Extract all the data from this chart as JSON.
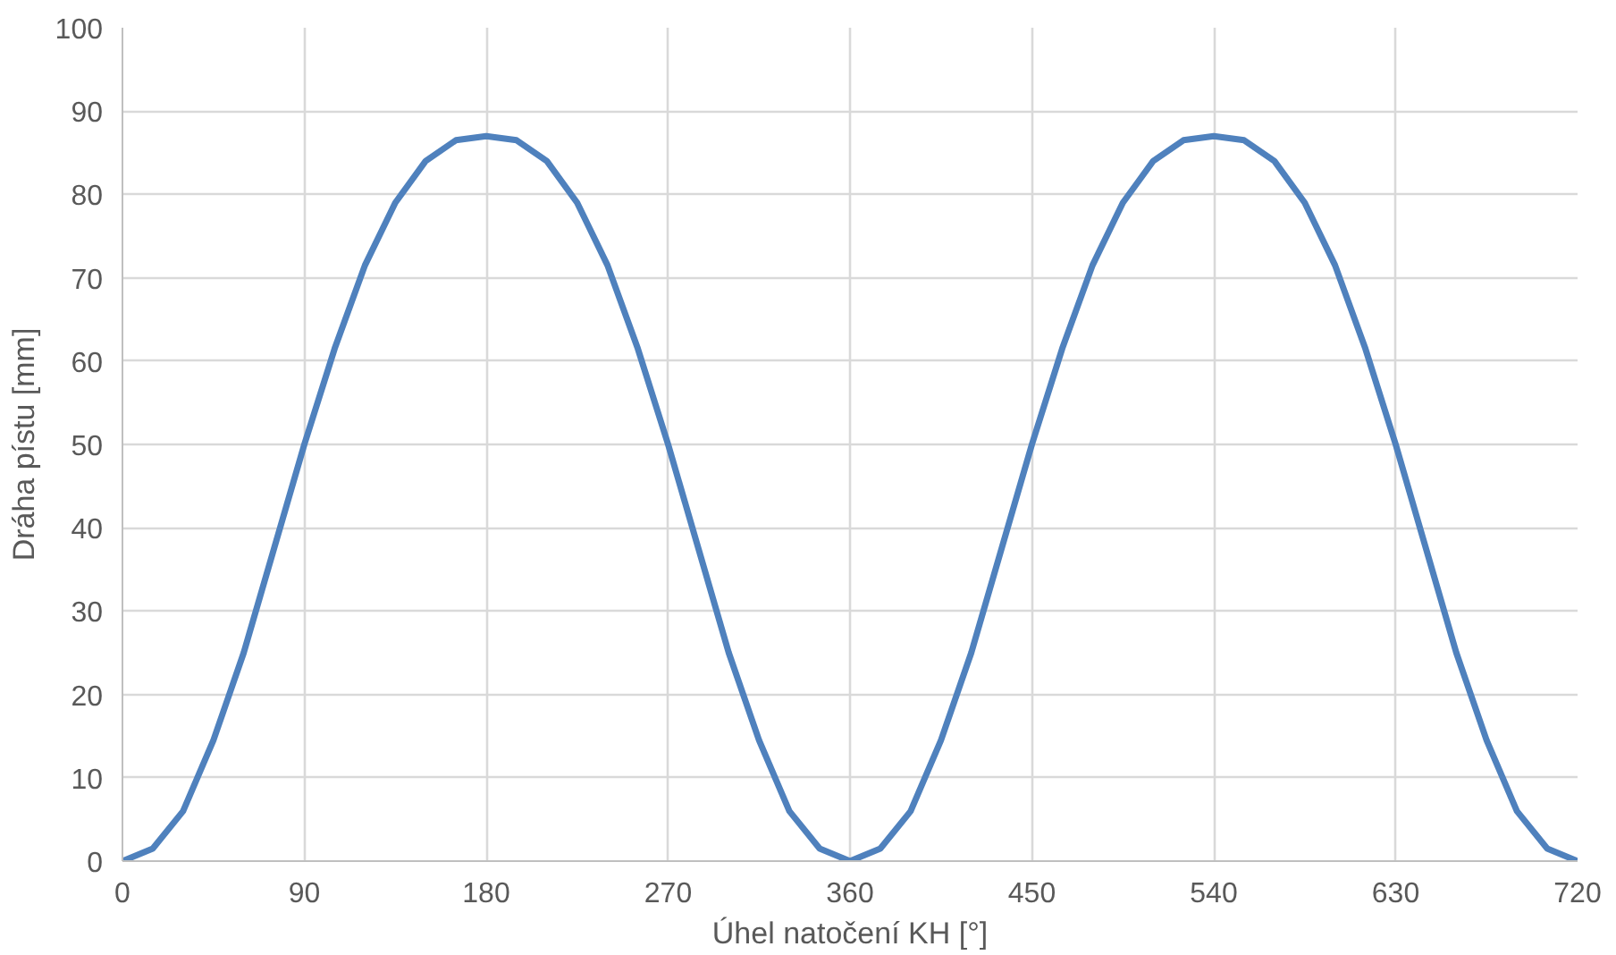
{
  "chart_data": {
    "type": "line",
    "xlabel": "Úhel natočení KH [°]",
    "ylabel": "Dráha pístu [mm]",
    "x": [
      0,
      15,
      30,
      45,
      60,
      75,
      90,
      105,
      120,
      135,
      150,
      165,
      180,
      195,
      210,
      225,
      240,
      255,
      270,
      285,
      300,
      315,
      330,
      345,
      360,
      375,
      390,
      405,
      420,
      435,
      450,
      465,
      480,
      495,
      510,
      525,
      540,
      555,
      570,
      585,
      600,
      615,
      630,
      645,
      660,
      675,
      690,
      705,
      720
    ],
    "series": [
      {
        "color": "#4f81bd",
        "values": [
          0,
          1.5,
          6,
          14.5,
          25,
          37.5,
          50,
          61.5,
          71.5,
          79,
          84,
          86.5,
          87,
          86.5,
          84,
          79,
          71.5,
          61.5,
          50,
          37.5,
          25,
          14.5,
          6,
          1.5,
          0,
          1.5,
          6,
          14.5,
          25,
          37.5,
          50,
          61.5,
          71.5,
          79,
          84,
          86.5,
          87,
          86.5,
          84,
          79,
          71.5,
          61.5,
          50,
          37.5,
          25,
          14.5,
          6,
          1.5,
          0
        ]
      }
    ],
    "xlim": [
      0,
      720
    ],
    "ylim": [
      0,
      100
    ],
    "xticks": [
      0,
      90,
      180,
      270,
      360,
      450,
      540,
      630,
      720
    ],
    "yticks": [
      0,
      10,
      20,
      30,
      40,
      50,
      60,
      70,
      80,
      90,
      100
    ],
    "grid": true
  }
}
